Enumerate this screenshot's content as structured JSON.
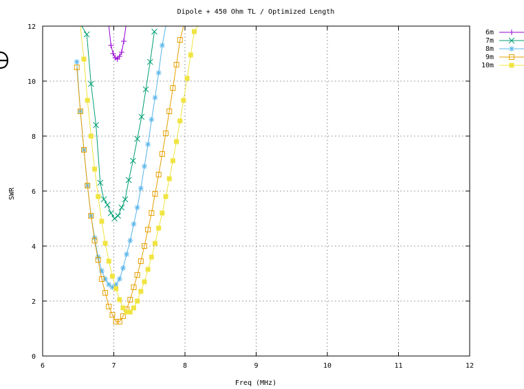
{
  "chart_data": {
    "type": "line",
    "title": "Dipole + 450 Ohm TL / Optimized Length",
    "xlabel": "Freq (MHz)",
    "ylabel": "SWR",
    "xlim": [
      6,
      12
    ],
    "ylim": [
      0,
      12
    ],
    "xticks": [
      6,
      7,
      8,
      9,
      10,
      11,
      12
    ],
    "yticks": [
      0,
      2,
      4,
      6,
      8,
      10,
      12
    ],
    "grid": true,
    "legend_position": "outside-right-top",
    "series": [
      {
        "name": "6m",
        "color": "#9400d3",
        "marker": "plus",
        "x": [
          6.93,
          6.96,
          6.99,
          7.02,
          7.05,
          7.08,
          7.11,
          7.14,
          7.17
        ],
        "y": [
          12.0,
          11.3,
          11.0,
          10.85,
          10.8,
          10.9,
          11.05,
          11.45,
          12.0
        ]
      },
      {
        "name": "7m",
        "color": "#009e73",
        "marker": "x",
        "x": [
          6.48,
          6.55,
          6.62,
          6.68,
          6.75,
          6.81,
          6.86,
          6.91,
          6.96,
          7.01,
          7.06,
          7.11,
          7.16,
          7.21,
          7.27,
          7.33,
          7.39,
          7.45,
          7.51,
          7.57
        ],
        "y": [
          12.0,
          12.0,
          11.7,
          9.9,
          8.4,
          6.3,
          5.7,
          5.5,
          5.2,
          5.0,
          5.1,
          5.4,
          5.7,
          6.4,
          7.1,
          7.9,
          8.7,
          9.7,
          10.7,
          11.8
        ]
      },
      {
        "name": "8m",
        "color": "#56b4e9",
        "marker": "star",
        "x": [
          6.48,
          6.53,
          6.58,
          6.63,
          6.68,
          6.73,
          6.78,
          6.83,
          6.88,
          6.93,
          6.98,
          7.03,
          7.08,
          7.13,
          7.18,
          7.23,
          7.28,
          7.33,
          7.38,
          7.43,
          7.48,
          7.53,
          7.58,
          7.63,
          7.68,
          7.73,
          7.78
        ],
        "y": [
          10.7,
          8.9,
          7.5,
          6.2,
          5.1,
          4.3,
          3.6,
          3.1,
          2.8,
          2.6,
          2.5,
          2.6,
          2.8,
          3.2,
          3.7,
          4.2,
          4.8,
          5.4,
          6.1,
          6.9,
          7.7,
          8.6,
          9.4,
          10.3,
          11.3,
          12.0,
          12.0
        ]
      },
      {
        "name": "9m",
        "color": "#e69f00",
        "marker": "open-square",
        "x": [
          6.48,
          6.53,
          6.58,
          6.63,
          6.68,
          6.73,
          6.78,
          6.83,
          6.88,
          6.93,
          6.98,
          7.03,
          7.08,
          7.13,
          7.18,
          7.23,
          7.28,
          7.33,
          7.38,
          7.43,
          7.48,
          7.53,
          7.58,
          7.63,
          7.68,
          7.73,
          7.78,
          7.83,
          7.88,
          7.93,
          7.98
        ],
        "y": [
          10.5,
          8.9,
          7.5,
          6.2,
          5.1,
          4.2,
          3.5,
          2.8,
          2.3,
          1.8,
          1.5,
          1.25,
          1.25,
          1.45,
          1.7,
          2.05,
          2.5,
          2.95,
          3.45,
          4.0,
          4.6,
          5.2,
          5.9,
          6.6,
          7.35,
          8.1,
          8.9,
          9.75,
          10.6,
          11.5,
          12.0
        ]
      },
      {
        "name": "10m",
        "color": "#f0e442",
        "marker": "filled-square",
        "x": [
          6.53,
          6.58,
          6.63,
          6.68,
          6.73,
          6.78,
          6.83,
          6.88,
          6.93,
          6.98,
          7.03,
          7.08,
          7.13,
          7.18,
          7.23,
          7.28,
          7.33,
          7.38,
          7.43,
          7.48,
          7.53,
          7.58,
          7.63,
          7.68,
          7.73,
          7.78,
          7.83,
          7.88,
          7.93,
          7.98,
          8.03,
          8.08,
          8.13,
          8.18,
          8.23
        ],
        "y": [
          12.0,
          10.8,
          9.3,
          8.0,
          6.8,
          5.8,
          4.9,
          4.1,
          3.45,
          2.9,
          2.45,
          2.05,
          1.75,
          1.6,
          1.6,
          1.75,
          2.0,
          2.35,
          2.7,
          3.15,
          3.6,
          4.1,
          4.65,
          5.2,
          5.8,
          6.45,
          7.1,
          7.8,
          8.55,
          9.3,
          10.1,
          10.95,
          11.8,
          12.0,
          12.0
        ]
      }
    ]
  }
}
